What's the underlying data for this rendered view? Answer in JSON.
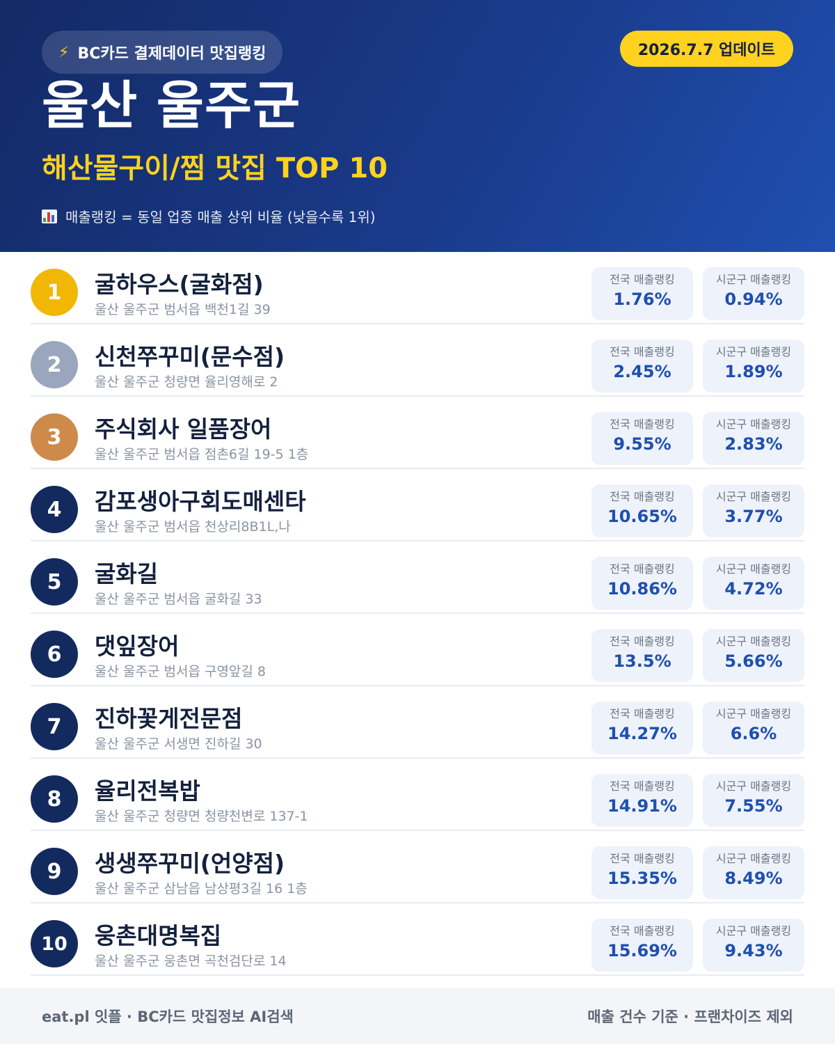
{
  "header": {
    "tag_icon": "lightning-icon",
    "tag": "BC카드 결제데이터 맛집랭킹",
    "update": "2026.7.7 업데이트",
    "region": "울산 울주군",
    "subtitle": "해산물구이/찜 맛집 TOP 10",
    "note_icon": "bar-chart-icon",
    "note": "매출랭킹 = 동일 업종 매출 상위 비율 (낮을수록 1위)"
  },
  "colors": {
    "gold": "#f2b705",
    "silver": "#9aa6bd",
    "bronze": "#cd8a4b",
    "navy": "#132a5e",
    "accent": "#ffd21f"
  },
  "stat_labels": {
    "national": "전국 매출랭킹",
    "local": "시군구 매출랭킹"
  },
  "restaurants": [
    {
      "rank": "1",
      "name": "굴하우스(굴화점)",
      "address": "울산 울주군 범서읍 백천1길 39",
      "national": "1.76%",
      "local": "0.94%"
    },
    {
      "rank": "2",
      "name": "신천쭈꾸미(문수점)",
      "address": "울산 울주군 청량면 율리영해로 2",
      "national": "2.45%",
      "local": "1.89%"
    },
    {
      "rank": "3",
      "name": "주식회사 일품장어",
      "address": "울산 울주군 범서읍 점촌6길 19-5 1층",
      "national": "9.55%",
      "local": "2.83%"
    },
    {
      "rank": "4",
      "name": "감포생아구회도매센타",
      "address": "울산 울주군 범서읍 천상리8B1L,나",
      "national": "10.65%",
      "local": "3.77%"
    },
    {
      "rank": "5",
      "name": "굴화길",
      "address": "울산 울주군 범서읍 굴화길 33",
      "national": "10.86%",
      "local": "4.72%"
    },
    {
      "rank": "6",
      "name": "댓잎장어",
      "address": "울산 울주군 범서읍 구영앞길 8",
      "national": "13.5%",
      "local": "5.66%"
    },
    {
      "rank": "7",
      "name": "진하꽃게전문점",
      "address": "울산 울주군 서생면 진하길 30",
      "national": "14.27%",
      "local": "6.6%"
    },
    {
      "rank": "8",
      "name": "율리전복밥",
      "address": "울산 울주군 청량면 청량천변로 137-1",
      "national": "14.91%",
      "local": "7.55%"
    },
    {
      "rank": "9",
      "name": "생생쭈꾸미(언양점)",
      "address": "울산 울주군 삼남읍 남상평3길 16 1층",
      "national": "15.35%",
      "local": "8.49%"
    },
    {
      "rank": "10",
      "name": "웅촌대명복집",
      "address": "울산 울주군 웅촌면 곡천검단로 14",
      "national": "15.69%",
      "local": "9.43%"
    }
  ],
  "footer": {
    "left": "eat.pl 잇플 · BC카드 맛집정보 AI검색",
    "right": "매출 건수 기준 · 프랜차이즈 제외"
  }
}
